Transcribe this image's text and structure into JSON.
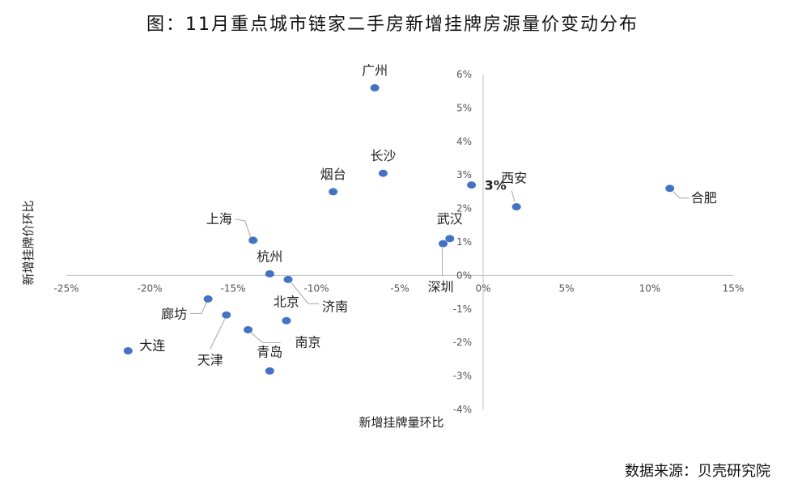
{
  "title": "图：11月重点城市链家二手房新增挂牌房源量价变动分布",
  "source": "数据来源：贝壳研究院",
  "chart_data": {
    "type": "scatter",
    "xlabel": "新增挂牌量环比",
    "ylabel": "新增挂牌价环比",
    "xlim": [
      -25,
      15
    ],
    "ylim": [
      -4,
      6
    ],
    "x_ticks": [
      "-25%",
      "-20%",
      "-15%",
      "-10%",
      "-5%",
      "0%",
      "5%",
      "10%",
      "15%"
    ],
    "y_ticks": [
      "6%",
      "5%",
      "4%",
      "3%",
      "2%",
      "1%",
      "0%",
      "-1%",
      "-2%",
      "-3%",
      "-4%"
    ],
    "grid": false,
    "legend": "none",
    "marker_color": "#4472C4",
    "points": [
      {
        "label": "广州",
        "x": -6.5,
        "y": 5.6
      },
      {
        "label": "长沙",
        "x": -6.0,
        "y": 3.05
      },
      {
        "label": "烟台",
        "x": -9.0,
        "y": 2.5
      },
      {
        "label": "西安",
        "x": 2.0,
        "y": 2.05
      },
      {
        "label": "3%",
        "x": -0.7,
        "y": 2.7
      },
      {
        "label": "合肥",
        "x": 11.2,
        "y": 2.6
      },
      {
        "label": "武汉",
        "x": -2.0,
        "y": 1.1
      },
      {
        "label": "深圳",
        "x": -2.4,
        "y": 0.95
      },
      {
        "label": "上海",
        "x": -13.8,
        "y": 1.05
      },
      {
        "label": "杭州",
        "x": -12.8,
        "y": 0.05
      },
      {
        "label": "济南",
        "x": -11.7,
        "y": -0.12
      },
      {
        "label": "北京",
        "x": -11.8,
        "y": -1.35
      },
      {
        "label": "廊坊",
        "x": -16.5,
        "y": -0.7
      },
      {
        "label": "天津",
        "x": -15.4,
        "y": -1.18
      },
      {
        "label": "南京",
        "x": -14.1,
        "y": -1.62
      },
      {
        "label": "大连",
        "x": -21.3,
        "y": -2.25
      },
      {
        "label": "青岛",
        "x": -12.8,
        "y": -2.85
      }
    ]
  }
}
